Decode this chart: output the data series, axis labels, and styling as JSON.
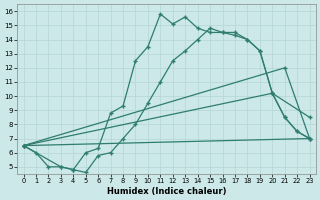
{
  "xlabel": "Humidex (Indice chaleur)",
  "bg_color": "#cce8e8",
  "line_color": "#2e7d6e",
  "grid_color": "#b8d8d8",
  "xlim": [
    -0.5,
    23.5
  ],
  "ylim": [
    4.5,
    16.5
  ],
  "xticks": [
    0,
    1,
    2,
    3,
    4,
    5,
    6,
    7,
    8,
    9,
    10,
    11,
    12,
    13,
    14,
    15,
    16,
    17,
    18,
    19,
    20,
    21,
    22,
    23
  ],
  "yticks": [
    5,
    6,
    7,
    8,
    9,
    10,
    11,
    12,
    13,
    14,
    15,
    16
  ],
  "line1_x": [
    0,
    1,
    2,
    3,
    4,
    5,
    6,
    7,
    8,
    9,
    10,
    11,
    12,
    13,
    14,
    15,
    16,
    17,
    18,
    19,
    20,
    21,
    22,
    23
  ],
  "line1_y": [
    6.5,
    6.0,
    5.0,
    5.0,
    4.8,
    6.0,
    6.3,
    8.8,
    9.3,
    12.5,
    13.5,
    15.8,
    15.1,
    15.6,
    14.8,
    14.5,
    14.5,
    14.5,
    14.0,
    13.2,
    10.2,
    8.5,
    7.5,
    7.0
  ],
  "line2_x": [
    0,
    3,
    4,
    5,
    6,
    7,
    8,
    9,
    10,
    11,
    12,
    13,
    14,
    15,
    16,
    17,
    18,
    19,
    20,
    21,
    22,
    23
  ],
  "line2_y": [
    6.5,
    5.0,
    4.8,
    4.6,
    5.8,
    6.0,
    7.0,
    8.0,
    9.5,
    11.0,
    12.5,
    13.2,
    14.0,
    14.8,
    14.5,
    14.3,
    14.0,
    13.2,
    10.2,
    8.5,
    7.5,
    7.0
  ],
  "line3_x": [
    0,
    23
  ],
  "line3_y": [
    6.5,
    7.0
  ],
  "line4_x": [
    0,
    20,
    23
  ],
  "line4_y": [
    6.5,
    10.2,
    8.5
  ],
  "line5_x": [
    0,
    21,
    23
  ],
  "line5_y": [
    6.5,
    12.0,
    7.0
  ]
}
